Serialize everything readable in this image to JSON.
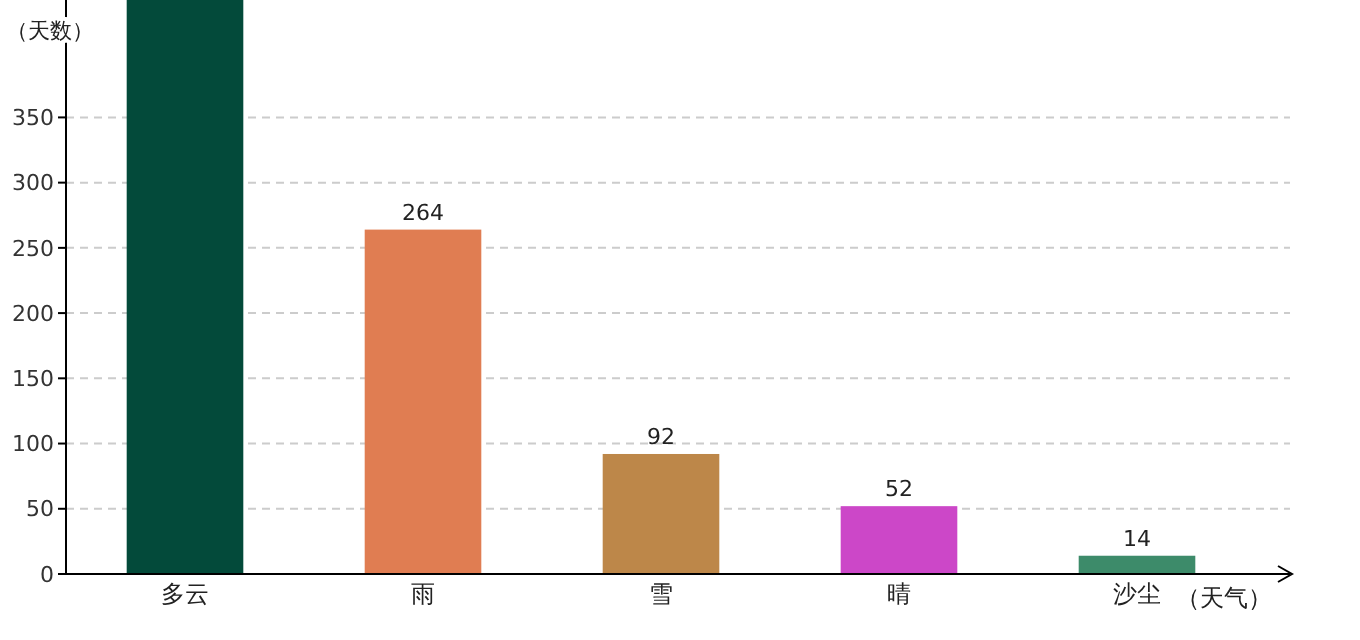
{
  "chart_data": {
    "type": "bar",
    "xlabel": "（天气）",
    "ylabel": "（天数）",
    "categories": [
      "多云",
      "雨",
      "雪",
      "晴",
      "沙尘"
    ],
    "values": [
      440,
      264,
      92,
      52,
      14
    ],
    "value_labels": [
      null,
      "264",
      "92",
      "52",
      "14"
    ],
    "colors": [
      "#034a3a",
      "#e07d52",
      "#bd8749",
      "#cc47c8",
      "#3d8b6a"
    ],
    "ylim": [
      0,
      440
    ],
    "yticks": [
      0,
      50,
      100,
      150,
      200,
      250,
      300,
      350
    ],
    "grid": "y"
  }
}
